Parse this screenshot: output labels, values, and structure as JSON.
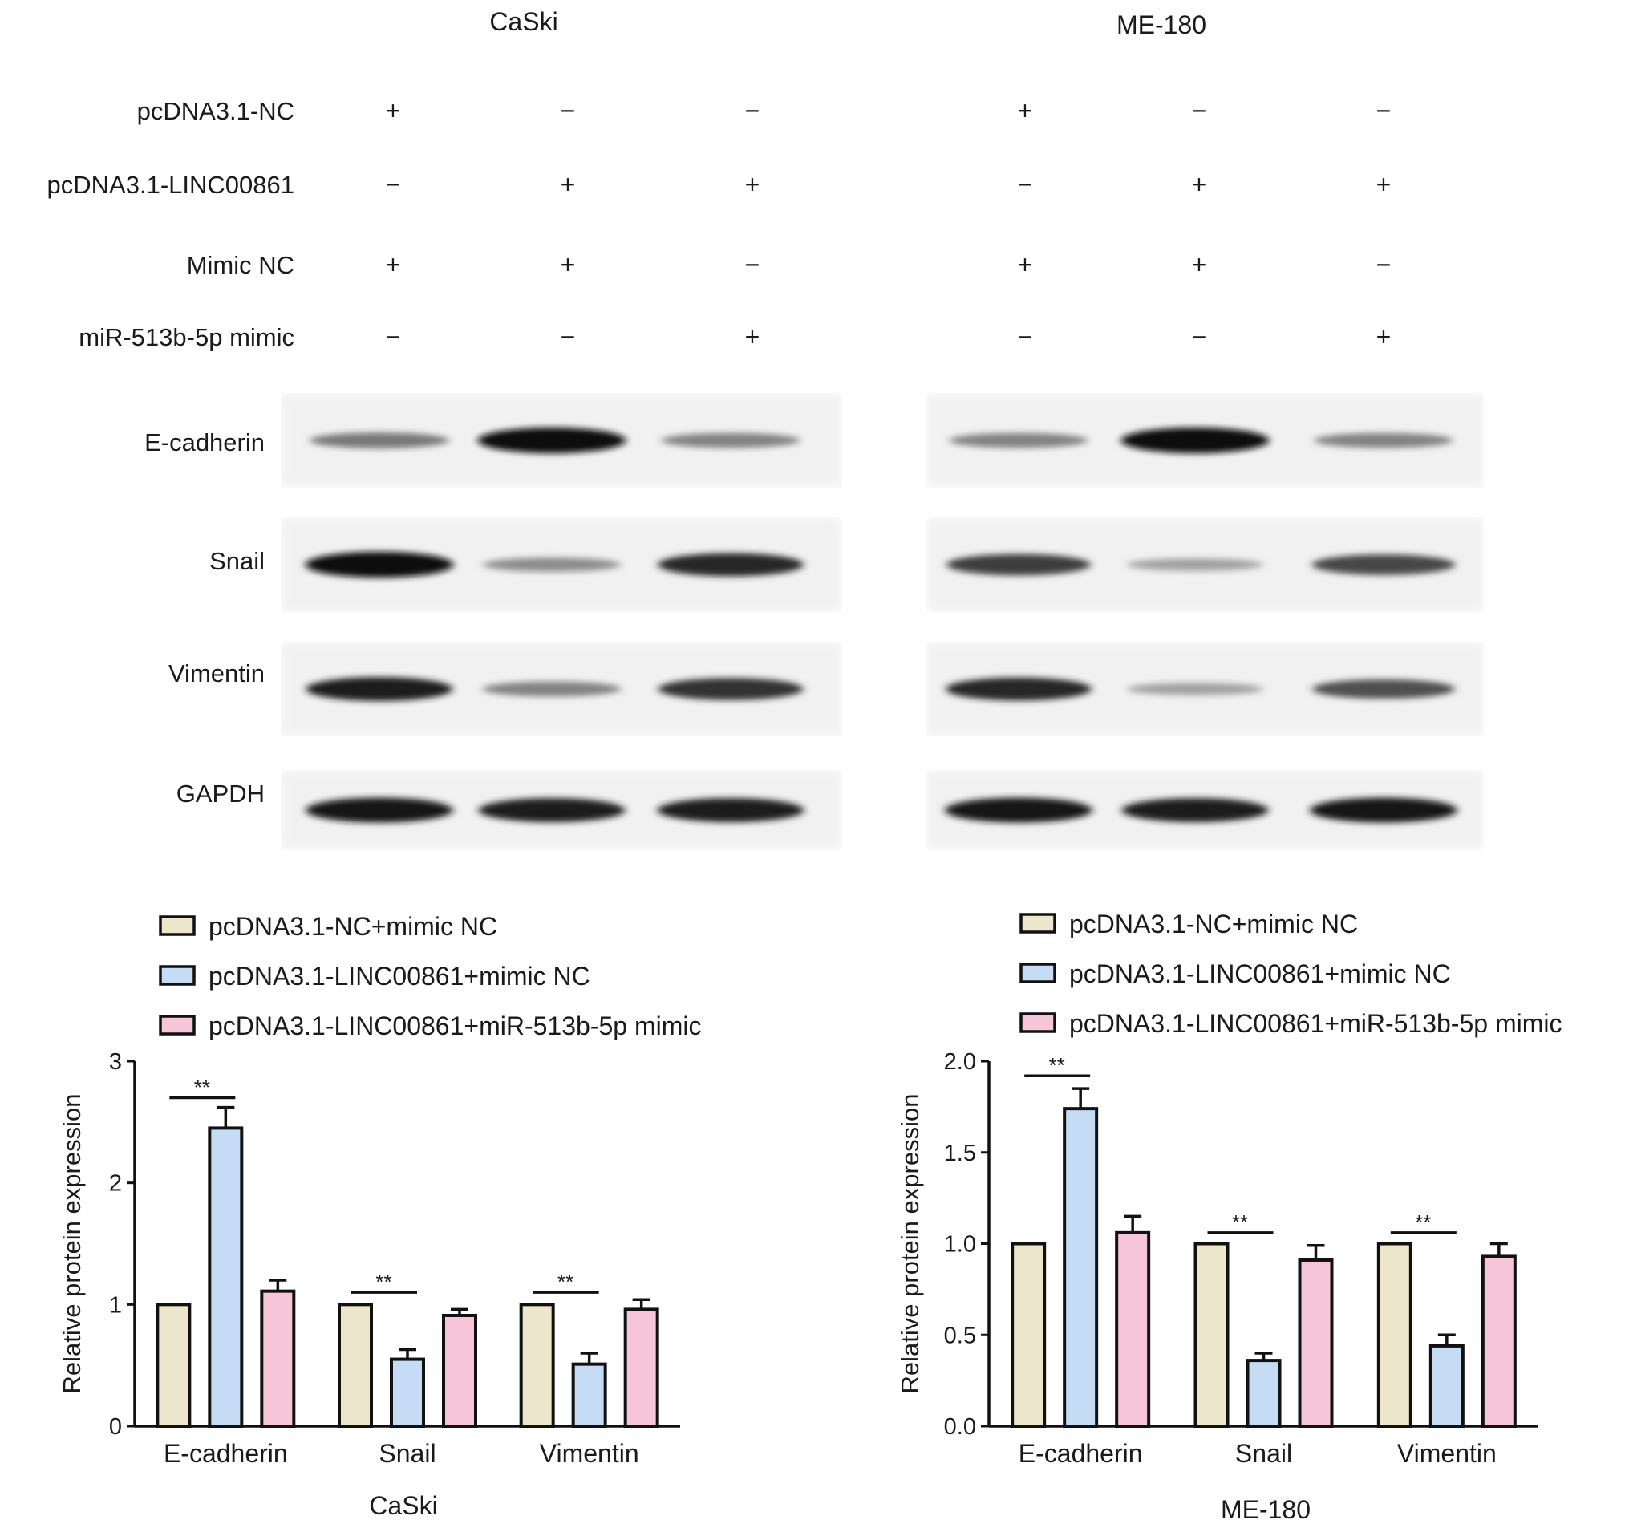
{
  "blot": {
    "conditions": [
      {
        "label": "pcDNA3.1-NC",
        "caski": [
          "+",
          "−",
          "−"
        ],
        "me180": [
          "+",
          "−",
          "−"
        ]
      },
      {
        "label": "pcDNA3.1-LINC00861",
        "caski": [
          "−",
          "+",
          "+"
        ],
        "me180": [
          "−",
          "+",
          "+"
        ]
      },
      {
        "label": "Mimic NC",
        "caski": [
          "+",
          "+",
          "−"
        ],
        "me180": [
          "+",
          "+",
          "−"
        ]
      },
      {
        "label": "miR-513b-5p mimic",
        "caski": [
          "−",
          "−",
          "+"
        ],
        "me180": [
          "−",
          "−",
          "+"
        ]
      }
    ],
    "proteins": [
      {
        "label": "E-cadherin",
        "caski": [
          0.45,
          1.0,
          0.4
        ],
        "me180": [
          0.4,
          1.0,
          0.4
        ]
      },
      {
        "label": "Snail",
        "caski": [
          1.0,
          0.35,
          0.85
        ],
        "me180": [
          0.75,
          0.25,
          0.7
        ]
      },
      {
        "label": "Vimentin",
        "caski": [
          0.9,
          0.4,
          0.8
        ],
        "me180": [
          0.85,
          0.25,
          0.65
        ]
      },
      {
        "label": "GAPDH",
        "caski": [
          0.95,
          0.9,
          0.9
        ],
        "me180": [
          0.95,
          0.9,
          0.95
        ]
      }
    ]
  },
  "chart_data": [
    {
      "type": "bar",
      "title": "CaSki",
      "xlabel": "CaSki",
      "ylabel": "Relative protein expression",
      "categories": [
        "E-cadherin",
        "Snail",
        "Vimentin"
      ],
      "ylim": [
        0,
        3
      ],
      "yticks": [
        "0",
        "1",
        "2",
        "3"
      ],
      "yticks_values": [
        0,
        1,
        2,
        3
      ],
      "series": [
        {
          "name": "pcDNA3.1-NC+mimic NC",
          "color": "#ebe6cc",
          "values": [
            1.0,
            1.0,
            1.0
          ],
          "errors": [
            0,
            0,
            0
          ]
        },
        {
          "name": "pcDNA3.1-LINC00861+mimic NC",
          "color": "#c6dcf4",
          "values": [
            2.45,
            0.55,
            0.51
          ],
          "errors": [
            0.17,
            0.08,
            0.09
          ]
        },
        {
          "name": "pcDNA3.1-LINC00861+miR-513b-5p mimic",
          "color": "#f7c5d8",
          "values": [
            1.11,
            0.91,
            0.96
          ],
          "errors": [
            0.09,
            0.05,
            0.08
          ]
        }
      ],
      "significance": [
        {
          "category": "E-cadherin",
          "label": "**",
          "y": 2.7
        },
        {
          "category": "Snail",
          "label": "**",
          "y": 1.1
        },
        {
          "category": "Vimentin",
          "label": "**",
          "y": 1.1
        }
      ],
      "legend": "top-left"
    },
    {
      "type": "bar",
      "title": "ME-180",
      "xlabel": "ME-180",
      "ylabel": "Relative protein expression",
      "categories": [
        "E-cadherin",
        "Snail",
        "Vimentin"
      ],
      "ylim": [
        0,
        2.0
      ],
      "yticks": [
        "0.0",
        "0.5",
        "1.0",
        "1.5",
        "2.0"
      ],
      "yticks_values": [
        0,
        0.5,
        1.0,
        1.5,
        2.0
      ],
      "series": [
        {
          "name": "pcDNA3.1-NC+mimic NC",
          "color": "#ebe6cc",
          "values": [
            1.0,
            1.0,
            1.0
          ],
          "errors": [
            0,
            0,
            0
          ]
        },
        {
          "name": "pcDNA3.1-LINC00861+mimic NC",
          "color": "#c6dcf4",
          "values": [
            1.74,
            0.36,
            0.44
          ],
          "errors": [
            0.11,
            0.04,
            0.06
          ]
        },
        {
          "name": "pcDNA3.1-LINC00861+miR-513b-5p mimic",
          "color": "#f7c5d8",
          "values": [
            1.06,
            0.91,
            0.93
          ],
          "errors": [
            0.09,
            0.08,
            0.07
          ]
        }
      ],
      "significance": [
        {
          "category": "E-cadherin",
          "label": "**",
          "y": 1.92
        },
        {
          "category": "Snail",
          "label": "**",
          "y": 1.06
        },
        {
          "category": "Vimentin",
          "label": "**",
          "y": 1.06
        }
      ],
      "legend": "top-left"
    }
  ]
}
